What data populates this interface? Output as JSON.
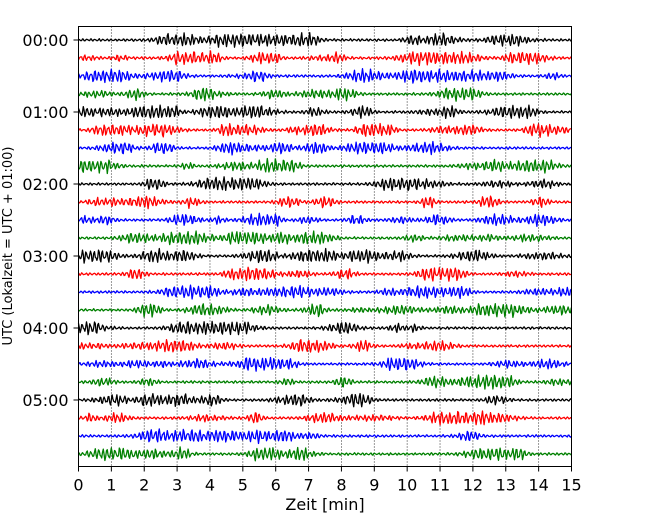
{
  "chart_data": {
    "type": "line",
    "title": "",
    "xlabel": "Zeit  [min]",
    "ylabel": "UTC (Lokalzeit = UTC + 01:00)",
    "xlim": [
      0,
      15
    ],
    "x_ticks": [
      "0",
      "1",
      "2",
      "3",
      "4",
      "5",
      "6",
      "7",
      "8",
      "9",
      "10",
      "11",
      "12",
      "13",
      "14",
      "15"
    ],
    "y_tick_labels": [
      "00:00",
      "01:00",
      "02:00",
      "03:00",
      "04:00",
      "05:00"
    ],
    "traces_per_hour": 4,
    "trace_count": 24,
    "trace_colors": [
      "#000000",
      "#ff0000",
      "#0000ff",
      "#008000"
    ],
    "grid": "vertical dotted at each minute",
    "legend": "none"
  }
}
